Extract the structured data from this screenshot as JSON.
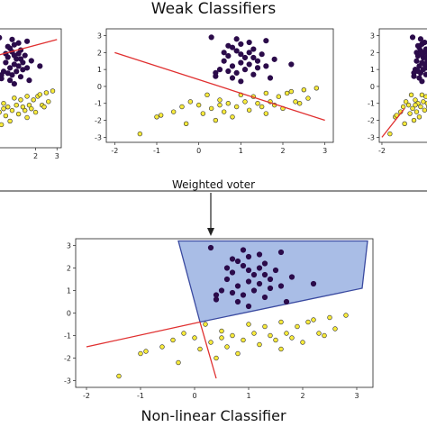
{
  "titles": {
    "top": "Weak Classifiers",
    "bottom": "Non-linear Classifier"
  },
  "arrow_label": "Weighted voter",
  "colors": {
    "class_a": "#2b0b4a",
    "class_b": "#f7ea3a",
    "boundary": "#e03030",
    "region_fill": "#a9bde6",
    "region_edge": "#3a4aa0"
  },
  "chart_data": [
    {
      "type": "scatter",
      "panel": "weak-classifier-left",
      "xticks": [
        "2",
        "3"
      ],
      "yticks": [],
      "boundary": [
        [
          -2,
          1.2
        ],
        [
          3,
          2.8
        ]
      ]
    },
    {
      "type": "scatter",
      "panel": "weak-classifier-center",
      "xlim": [
        -2.2,
        3.2
      ],
      "ylim": [
        -3.3,
        3.4
      ],
      "xticks": [
        "-2",
        "-1",
        "0",
        "1",
        "2",
        "3"
      ],
      "yticks": [
        "3",
        "2",
        "1",
        "0",
        "-1",
        "-2",
        "-3"
      ],
      "boundary": [
        [
          -2,
          2
        ],
        [
          3,
          -2
        ]
      ]
    },
    {
      "type": "scatter",
      "panel": "weak-classifier-right",
      "xticks": [
        "-2"
      ],
      "yticks": [
        "3",
        "2",
        "1",
        "0",
        "-1",
        "-2",
        "-3"
      ],
      "boundary": [
        [
          -2,
          -3
        ],
        [
          -0.3,
          -1.3
        ]
      ]
    },
    {
      "type": "scatter",
      "panel": "non-linear-classifier",
      "xlim": [
        -2.2,
        3.3
      ],
      "ylim": [
        -3.3,
        3.3
      ],
      "xticks": [
        "-2",
        "-1",
        "0",
        "1",
        "2",
        "3"
      ],
      "yticks": [
        "3",
        "2",
        "1",
        "0",
        "-1",
        "-2",
        "-3"
      ],
      "boundaries": [
        [
          [
            -2,
            -1.5
          ],
          [
            0.1,
            -0.4
          ]
        ],
        [
          [
            0.1,
            -0.4
          ],
          [
            0.4,
            -2.9
          ]
        ]
      ],
      "region": [
        [
          -0.3,
          3.2
        ],
        [
          3.2,
          3.2
        ],
        [
          3.1,
          1.1
        ],
        [
          0.1,
          -0.4
        ]
      ],
      "series": [
        {
          "values": [
            [
              0.6,
              2.0
            ],
            [
              0.7,
              1.8
            ],
            [
              0.8,
              2.3
            ],
            [
              0.9,
              2.1
            ],
            [
              1.0,
              2.5
            ],
            [
              1.1,
              1.7
            ],
            [
              1.2,
              2.0
            ],
            [
              1.3,
              2.2
            ],
            [
              1.0,
              1.4
            ],
            [
              0.8,
              1.2
            ],
            [
              1.1,
              1.0
            ],
            [
              0.6,
              1.5
            ],
            [
              1.4,
              1.5
            ],
            [
              1.5,
              1.9
            ],
            [
              1.2,
              2.6
            ],
            [
              0.9,
              2.8
            ],
            [
              0.7,
              2.4
            ],
            [
              1.4,
              1.1
            ],
            [
              0.5,
              1.0
            ],
            [
              0.4,
              0.6
            ],
            [
              0.9,
              0.8
            ],
            [
              1.3,
              0.7
            ],
            [
              1.6,
              1.2
            ],
            [
              1.8,
              1.6
            ],
            [
              0.3,
              2.9
            ],
            [
              1.2,
              1.3
            ],
            [
              1.0,
              0.3
            ],
            [
              1.7,
              0.5
            ],
            [
              0.4,
              0.8
            ],
            [
              0.8,
              0.5
            ],
            [
              1.6,
              2.7
            ],
            [
              2.2,
              1.3
            ],
            [
              1.0,
              1.9
            ],
            [
              1.3,
              1.7
            ],
            [
              0.7,
              0.9
            ]
          ]
        },
        {
          "values": [
            [
              -1.4,
              -2.8
            ],
            [
              -1.0,
              -1.8
            ],
            [
              -0.9,
              -1.7
            ],
            [
              -0.6,
              -1.5
            ],
            [
              -0.4,
              -1.2
            ],
            [
              -0.2,
              -0.9
            ],
            [
              0.0,
              -1.1
            ],
            [
              0.1,
              -1.6
            ],
            [
              0.3,
              -1.3
            ],
            [
              0.5,
              -0.8
            ],
            [
              0.7,
              -1.0
            ],
            [
              0.9,
              -1.2
            ],
            [
              1.1,
              -0.9
            ],
            [
              1.3,
              -0.6
            ],
            [
              1.5,
              -1.2
            ],
            [
              1.7,
              -0.9
            ],
            [
              1.9,
              -0.6
            ],
            [
              2.1,
              -0.4
            ],
            [
              2.3,
              -0.9
            ],
            [
              2.5,
              -0.2
            ],
            [
              2.6,
              -0.7
            ],
            [
              2.8,
              -0.1
            ],
            [
              0.4,
              -2.0
            ],
            [
              0.6,
              -1.5
            ],
            [
              0.8,
              -1.8
            ],
            [
              1.0,
              -0.5
            ],
            [
              1.2,
              -1.4
            ],
            [
              1.4,
              -1.0
            ],
            [
              1.6,
              -1.6
            ],
            [
              1.8,
              -1.1
            ],
            [
              2.0,
              -1.3
            ],
            [
              2.2,
              -0.3
            ],
            [
              -0.3,
              -2.2
            ],
            [
              0.2,
              -0.5
            ],
            [
              1.6,
              -0.4
            ],
            [
              2.4,
              -1.0
            ],
            [
              0.5,
              -1.1
            ]
          ]
        }
      ]
    }
  ]
}
